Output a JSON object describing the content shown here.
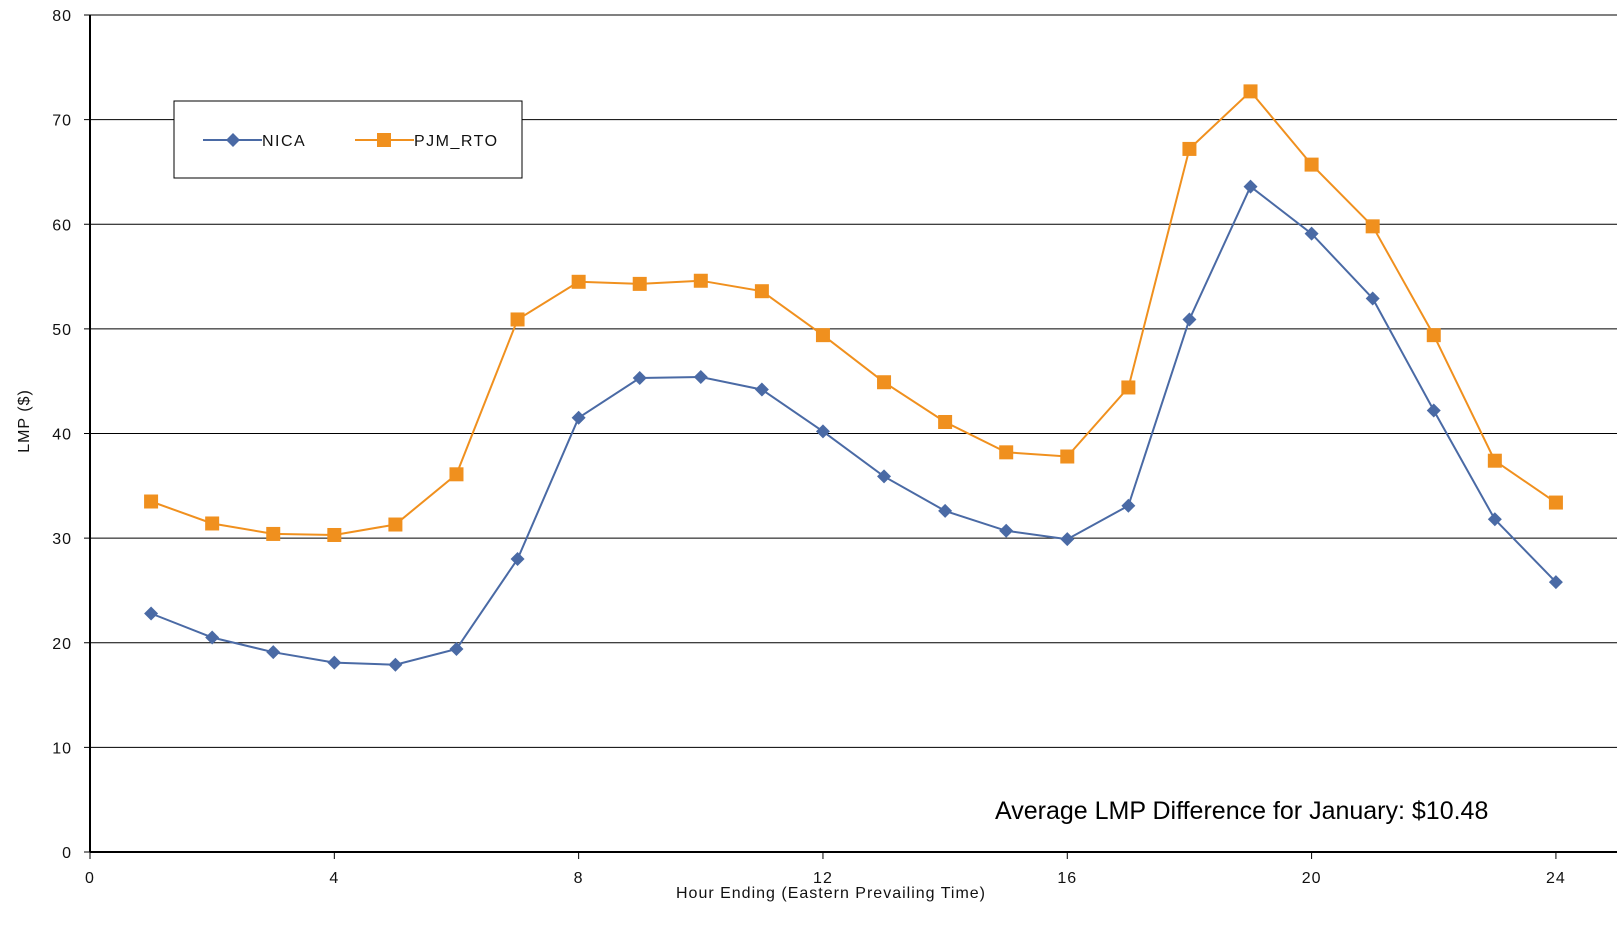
{
  "chart_data": {
    "type": "line",
    "title": "",
    "xlabel": "Hour Ending (Eastern Prevailing Time)",
    "ylabel": "LMP ($)",
    "xlim": [
      0,
      25
    ],
    "ylim": [
      0,
      80
    ],
    "xticks": [
      0,
      4,
      8,
      12,
      16,
      20,
      24
    ],
    "yticks": [
      0,
      10,
      20,
      30,
      40,
      50,
      60,
      70,
      80
    ],
    "grid": "horizontal",
    "legend_position": "top-left",
    "x": [
      1,
      2,
      3,
      4,
      5,
      6,
      7,
      8,
      9,
      10,
      11,
      12,
      13,
      14,
      15,
      16,
      17,
      18,
      19,
      20,
      21,
      22,
      23,
      24
    ],
    "series": [
      {
        "name": "NICA",
        "color": "#4a6aa5",
        "marker": "diamond",
        "values": [
          22.8,
          20.5,
          19.1,
          18.1,
          17.9,
          19.4,
          28.0,
          41.5,
          45.3,
          45.4,
          44.2,
          40.2,
          35.9,
          32.6,
          30.7,
          29.9,
          33.1,
          50.9,
          63.6,
          59.1,
          52.9,
          42.2,
          31.8,
          25.8
        ]
      },
      {
        "name": "PJM_RTO",
        "color": "#f0901e",
        "marker": "square",
        "values": [
          33.5,
          31.4,
          30.4,
          30.3,
          31.3,
          36.1,
          50.9,
          54.5,
          54.3,
          54.6,
          53.6,
          49.4,
          44.9,
          41.1,
          38.2,
          37.8,
          44.4,
          67.2,
          72.7,
          65.7,
          59.8,
          49.4,
          37.4,
          33.4
        ]
      }
    ],
    "annotation": "Average LMP Difference for January: $10.48"
  }
}
